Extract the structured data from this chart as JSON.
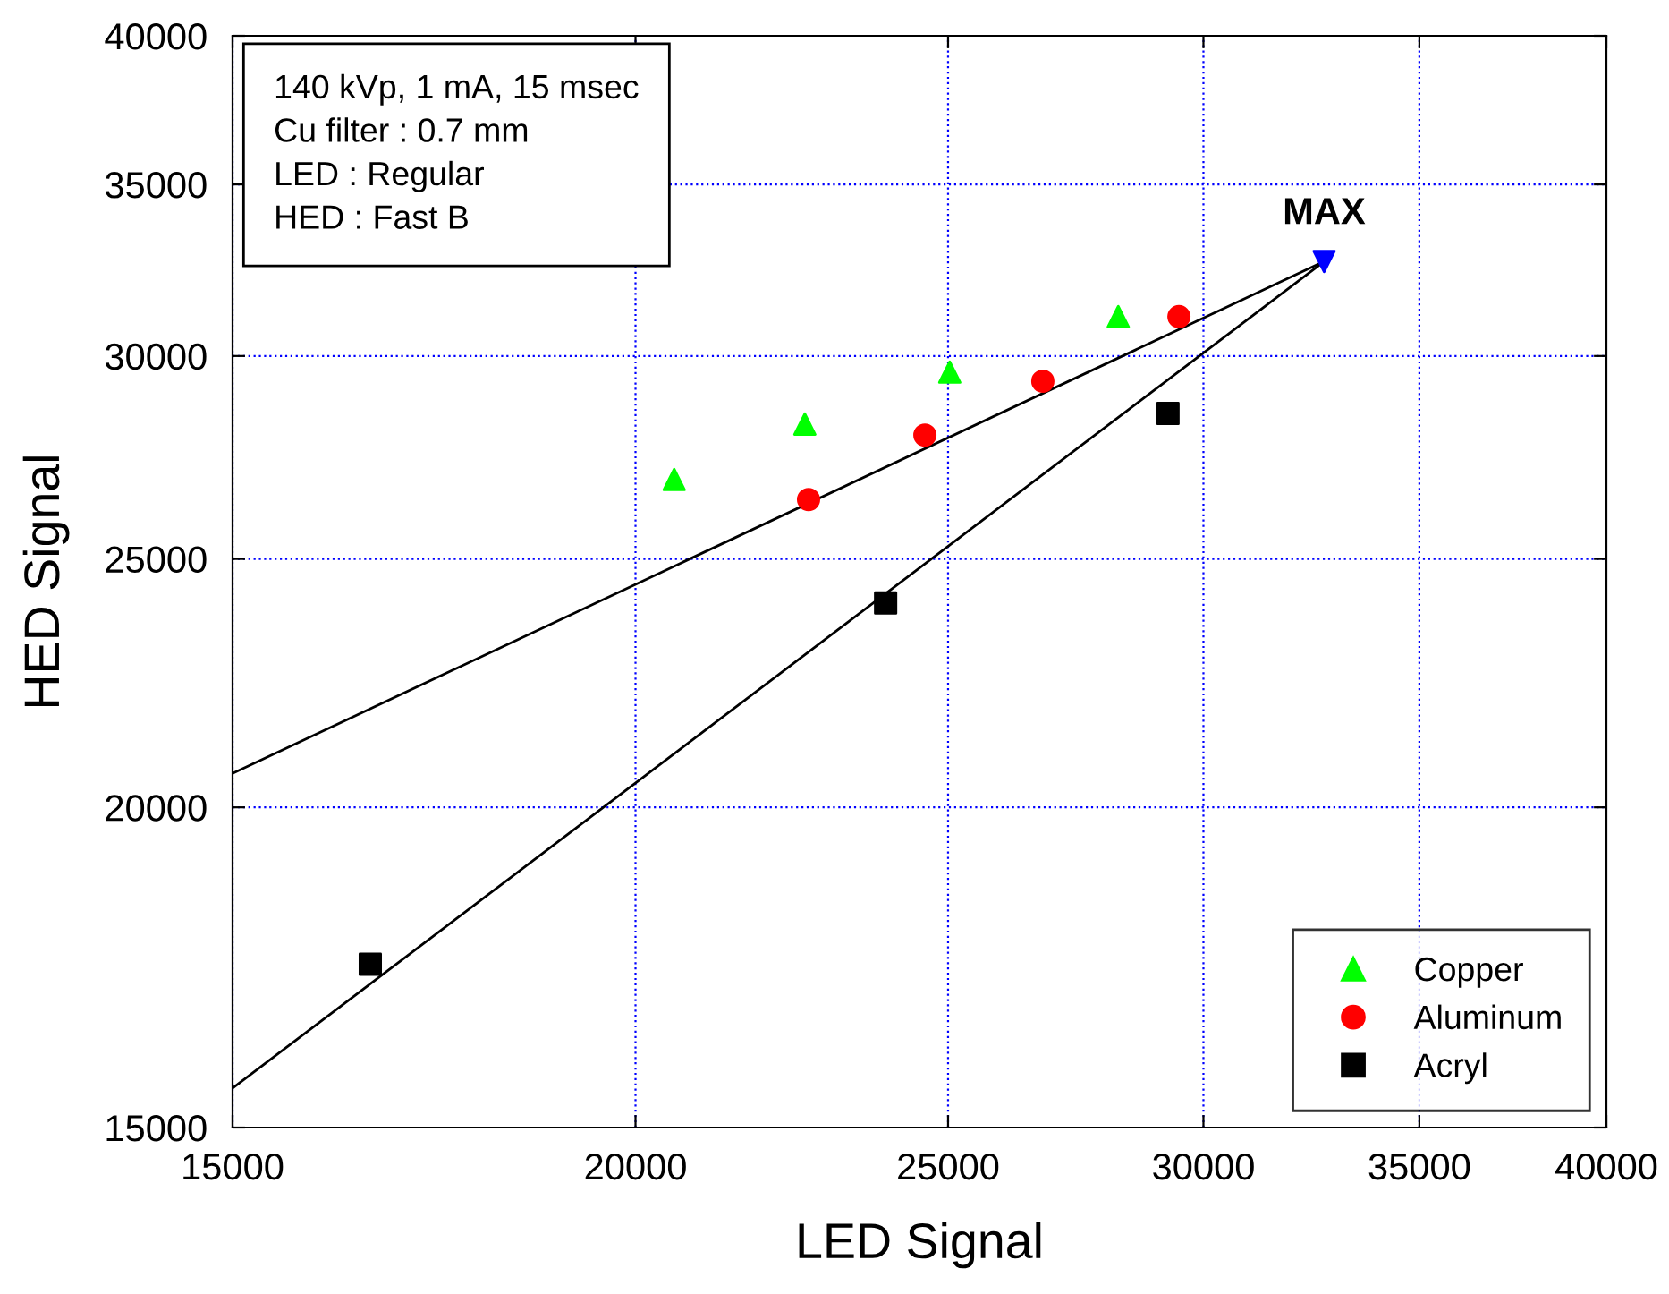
{
  "chart_data": {
    "type": "scatter",
    "xlabel": "LED Signal",
    "ylabel": "HED Signal",
    "log": "xy",
    "xlim": [
      15000,
      40000
    ],
    "ylim": [
      15000,
      40000
    ],
    "xticks": [
      15000,
      20000,
      25000,
      30000,
      35000,
      40000
    ],
    "yticks": [
      15000,
      20000,
      25000,
      30000,
      35000,
      40000
    ],
    "grid": true,
    "legend": "bottom right",
    "series": [
      {
        "name": "Copper",
        "color": "#00ff00",
        "marker": "triangle",
        "x": [
          20560,
          22570,
          25030,
          28230
        ],
        "values": [
          26850,
          28220,
          29570,
          31080
        ]
      },
      {
        "name": "Aluminum",
        "color": "#ff0000",
        "marker": "circle",
        "x": [
          22630,
          24590,
          26750,
          29480
        ],
        "values": [
          26370,
          27940,
          29330,
          31080
        ]
      },
      {
        "name": "Acryl",
        "color": "#000000",
        "marker": "square",
        "x": [
          16550,
          23910,
          29250
        ],
        "values": [
          17370,
          24030,
          28490
        ]
      },
      {
        "color": "#0000ff",
        "marker": "triangle_down",
        "x": [
          32700
        ],
        "values": [
          32660
        ]
      },
      {
        "type": "line",
        "color": "#000000",
        "marker": "none",
        "x": [
          15000,
          32700
        ],
        "values": [
          20620,
          32660
        ]
      },
      {
        "type": "line",
        "color": "#000000",
        "marker": "none",
        "x": [
          15000,
          32700
        ],
        "values": [
          15540,
          32660
        ]
      }
    ],
    "annotations": [
      {
        "text": "MAX",
        "x": 32700,
        "y": 32660
      },
      "140 kVp, 1 mA, 15 msec\nCu filter : 0.7 mm\nLED : Regular\nHED : Fast B"
    ]
  }
}
